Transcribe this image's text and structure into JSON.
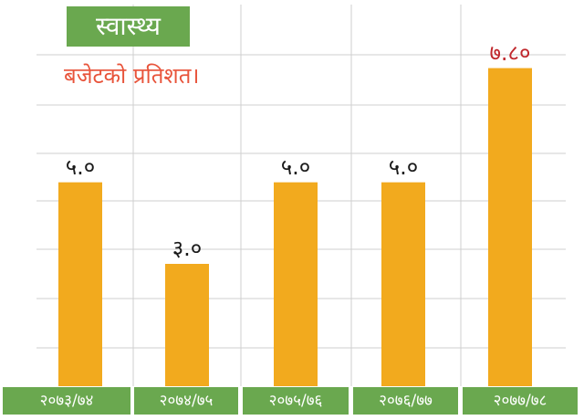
{
  "chart_data": {
    "type": "bar",
    "title": "स्वास्थ्य",
    "subtitle": "बजेटको प्रतिशत।",
    "categories": [
      "२०७३/७४",
      "२०७४/७५",
      "२०७५/७६",
      "२०७६/७७",
      "२०७७/७८"
    ],
    "values": [
      5.0,
      3.0,
      5.0,
      5.0,
      7.8
    ],
    "value_labels": [
      "५.०",
      "३.०",
      "५.०",
      "५.०",
      "७.८०"
    ],
    "ylim": [
      0,
      9
    ],
    "grid": true,
    "legend": "none"
  },
  "colors": {
    "bar": "#f2aa1e",
    "title_bg": "#6aa84f",
    "category_bg": "#6aa84f",
    "subtitle": "#e8533a",
    "highlight_label": "#c0282d",
    "grid": "#cfcfcf"
  }
}
